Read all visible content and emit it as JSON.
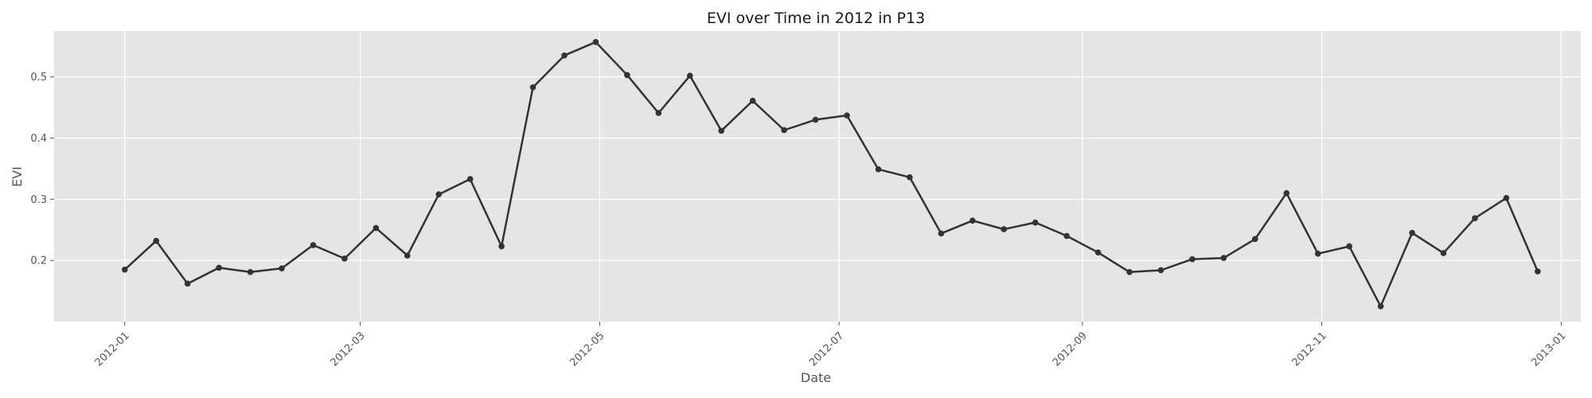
{
  "chart_data": {
    "type": "line",
    "title": "EVI over Time in 2012 in P13",
    "xlabel": "Date",
    "ylabel": "EVI",
    "x_axis_type": "date",
    "xlim": [
      "2011-12-14",
      "2013-01-06"
    ],
    "ylim": [
      0.1,
      0.575
    ],
    "x_ticks": [
      "2012-01-01",
      "2012-03-01",
      "2012-05-01",
      "2012-07-01",
      "2012-09-01",
      "2012-11-01",
      "2013-01-01"
    ],
    "x_tick_labels": [
      "2012-01",
      "2012-03",
      "2012-05",
      "2012-07",
      "2012-09",
      "2012-11",
      "2013-01"
    ],
    "y_ticks": [
      0.2,
      0.3,
      0.4,
      0.5
    ],
    "y_tick_labels": [
      "0.2",
      "0.3",
      "0.4",
      "0.5"
    ],
    "grid": true,
    "background_color": "#e5e5e5",
    "line_color": "#333333",
    "series": [
      {
        "x": [
          "2012-01-01",
          "2012-01-09",
          "2012-01-17",
          "2012-01-25",
          "2012-02-02",
          "2012-02-10",
          "2012-02-18",
          "2012-02-26",
          "2012-03-05",
          "2012-03-13",
          "2012-03-21",
          "2012-03-29",
          "2012-04-06",
          "2012-04-14",
          "2012-04-22",
          "2012-04-30",
          "2012-05-08",
          "2012-05-16",
          "2012-05-24",
          "2012-06-01",
          "2012-06-09",
          "2012-06-17",
          "2012-06-25",
          "2012-07-03",
          "2012-07-11",
          "2012-07-19",
          "2012-07-27",
          "2012-08-04",
          "2012-08-12",
          "2012-08-20",
          "2012-08-28",
          "2012-09-05",
          "2012-09-13",
          "2012-09-21",
          "2012-09-29",
          "2012-10-07",
          "2012-10-15",
          "2012-10-23",
          "2012-10-31",
          "2012-11-08",
          "2012-11-16",
          "2012-11-24",
          "2012-12-02",
          "2012-12-10",
          "2012-12-18",
          "2012-12-26"
        ],
        "y": [
          0.185,
          0.232,
          0.162,
          0.188,
          0.181,
          0.187,
          0.225,
          0.203,
          0.253,
          0.208,
          0.308,
          0.333,
          0.223,
          0.483,
          0.535,
          0.557,
          0.503,
          0.441,
          0.502,
          0.412,
          0.461,
          0.413,
          0.43,
          0.437,
          0.349,
          0.336,
          0.244,
          0.265,
          0.251,
          0.262,
          0.24,
          0.213,
          0.181,
          0.184,
          0.202,
          0.204,
          0.235,
          0.31,
          0.211,
          0.223,
          0.125,
          0.245,
          0.212,
          0.269,
          0.302,
          0.182
        ]
      }
    ]
  }
}
